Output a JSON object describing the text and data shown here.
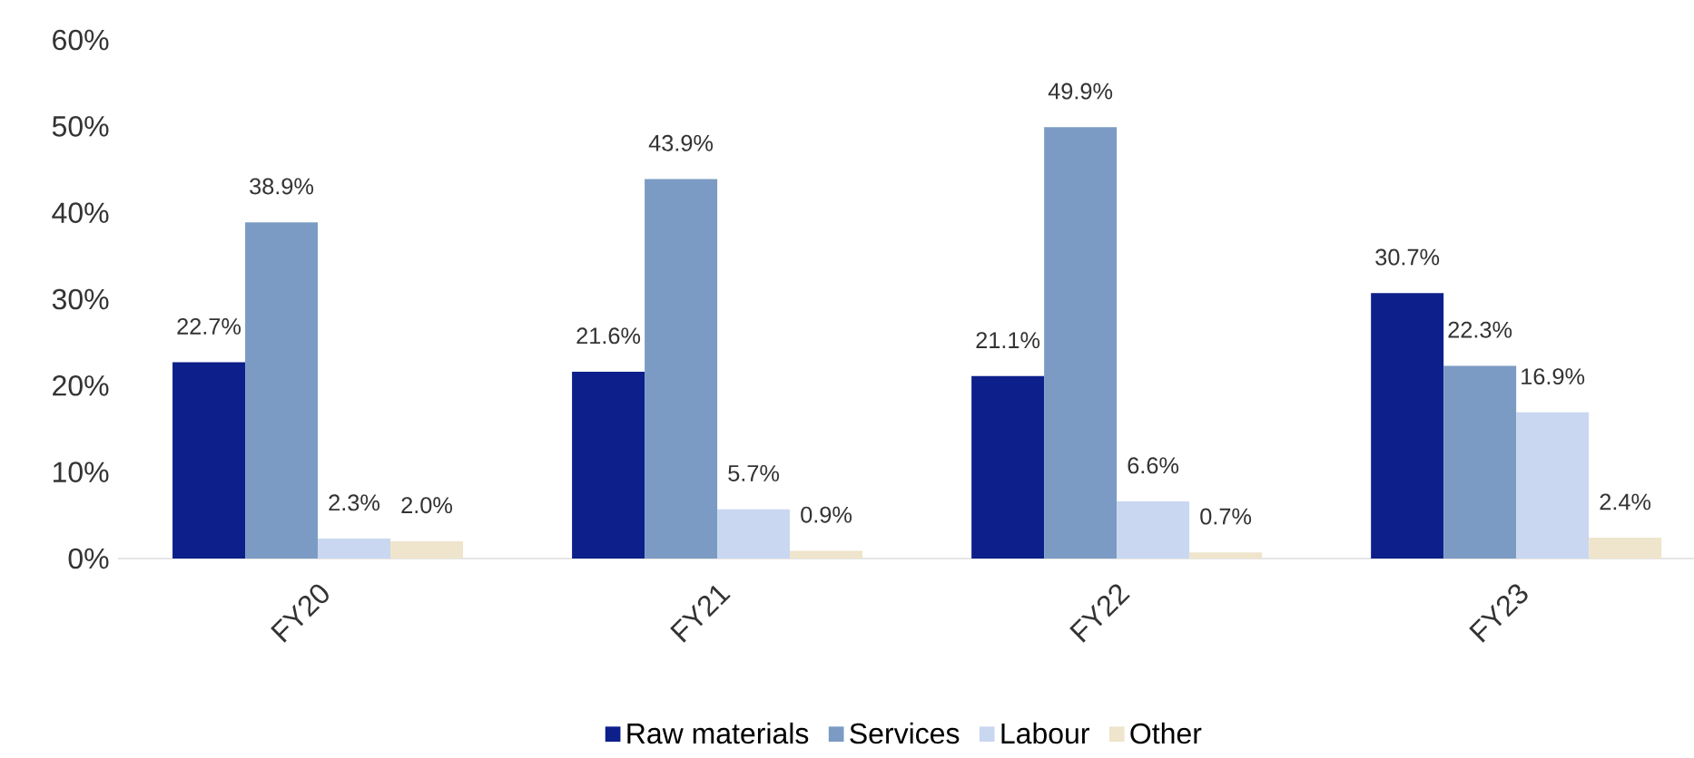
{
  "chart_data": {
    "type": "bar",
    "categories": [
      "FY20",
      "FY21",
      "FY22",
      "FY23"
    ],
    "series": [
      {
        "name": "Raw materials",
        "color": "#0d1f8a",
        "values": [
          22.7,
          21.6,
          21.1,
          30.7
        ],
        "value_labels": [
          "22.7%",
          "21.6%",
          "21.1%",
          "30.7%"
        ]
      },
      {
        "name": "Services",
        "color": "#7b9bc4",
        "values": [
          38.9,
          43.9,
          49.9,
          22.3
        ],
        "value_labels": [
          "38.9%",
          "43.9%",
          "49.9%",
          "22.3%"
        ]
      },
      {
        "name": "Labour",
        "color": "#c9d7f0",
        "values": [
          2.3,
          5.7,
          6.6,
          16.9
        ],
        "value_labels": [
          "2.3%",
          "5.7%",
          "6.6%",
          "16.9%"
        ]
      },
      {
        "name": "Other",
        "color": "#efe4cc",
        "values": [
          2.0,
          0.9,
          0.7,
          2.4
        ],
        "value_labels": [
          "2.0%",
          "0.9%",
          "0.7%",
          "2.4%"
        ]
      }
    ],
    "ylim": [
      0,
      60
    ],
    "yticks": [
      {
        "value": 0,
        "label": "0%"
      },
      {
        "value": 10,
        "label": "10%"
      },
      {
        "value": 20,
        "label": "20%"
      },
      {
        "value": 30,
        "label": "30%"
      },
      {
        "value": 40,
        "label": "40%"
      },
      {
        "value": 50,
        "label": "50%"
      },
      {
        "value": 60,
        "label": "60%"
      }
    ],
    "legend": "bottom"
  }
}
